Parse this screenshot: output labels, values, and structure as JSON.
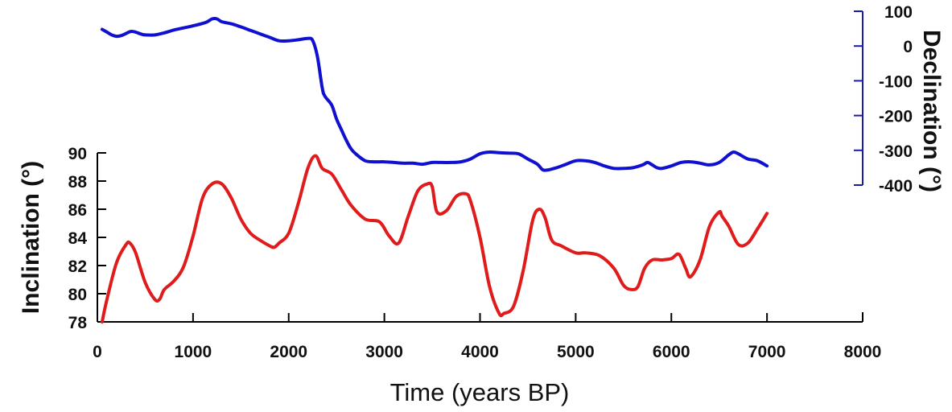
{
  "chart_data": {
    "type": "line",
    "x_axis": {
      "label": "Time (years BP)",
      "range": [
        0,
        8000
      ],
      "ticks": [
        "0",
        "1000",
        "2000",
        "3000",
        "4000",
        "5000",
        "6000",
        "7000",
        "8000"
      ]
    },
    "inclination_axis": {
      "label": "Inclination  (°)",
      "range": [
        78,
        90
      ],
      "ticks": [
        "78",
        "80",
        "82",
        "84",
        "86",
        "88",
        "90"
      ]
    },
    "declination_axis": {
      "label": "Declination  (°)",
      "range": [
        -400,
        100
      ],
      "ticks": [
        "100",
        "0",
        "-100",
        "-200",
        "-300",
        "-400"
      ]
    },
    "series": [
      {
        "key": "inclination",
        "color": "#e01b1b",
        "x": [
          50,
          100,
          200,
          300,
          340,
          400,
          500,
          600,
          650,
          700,
          800,
          900,
          1000,
          1100,
          1200,
          1300,
          1400,
          1500,
          1600,
          1700,
          1800,
          1850,
          1900,
          2000,
          2100,
          2200,
          2280,
          2350,
          2450,
          2550,
          2650,
          2800,
          2950,
          3050,
          3150,
          3250,
          3350,
          3450,
          3500,
          3550,
          3650,
          3750,
          3850,
          3900,
          4000,
          4100,
          4200,
          4250,
          4350,
          4450,
          4550,
          4620,
          4680,
          4750,
          4850,
          5000,
          5100,
          5250,
          5400,
          5500,
          5580,
          5650,
          5720,
          5800,
          5900,
          6000,
          6080,
          6150,
          6200,
          6300,
          6400,
          6500,
          6530,
          6600,
          6700,
          6800,
          6900,
          7000
        ],
        "values": [
          78.0,
          79.6,
          82.2,
          83.5,
          83.6,
          82.9,
          80.8,
          79.6,
          79.6,
          80.3,
          80.9,
          81.9,
          84.1,
          86.8,
          87.8,
          87.8,
          86.8,
          85.3,
          84.3,
          83.8,
          83.4,
          83.3,
          83.6,
          84.3,
          86.4,
          88.9,
          89.8,
          88.9,
          88.5,
          87.4,
          86.3,
          85.3,
          85.1,
          84.1,
          83.6,
          85.5,
          87.3,
          87.8,
          87.6,
          85.8,
          85.9,
          86.9,
          87.1,
          86.6,
          84.0,
          80.5,
          78.6,
          78.6,
          79.1,
          81.6,
          85.2,
          86.0,
          85.4,
          83.8,
          83.4,
          82.9,
          82.9,
          82.7,
          81.8,
          80.6,
          80.3,
          80.5,
          81.8,
          82.4,
          82.4,
          82.5,
          82.8,
          81.8,
          81.2,
          82.4,
          84.8,
          85.8,
          85.5,
          84.8,
          83.5,
          83.6,
          84.6,
          85.7
        ]
      },
      {
        "key": "declination",
        "color": "#1010d0",
        "x": [
          50,
          100,
          150,
          200,
          250,
          300,
          350,
          400,
          450,
          500,
          600,
          700,
          800,
          900,
          1000,
          1100,
          1150,
          1200,
          1250,
          1300,
          1400,
          1500,
          1600,
          1700,
          1800,
          1900,
          2000,
          2100,
          2200,
          2250,
          2300,
          2350,
          2380,
          2450,
          2500,
          2550,
          2600,
          2650,
          2700,
          2800,
          2900,
          3000,
          3100,
          3200,
          3300,
          3400,
          3500,
          3600,
          3700,
          3800,
          3900,
          4000,
          4100,
          4200,
          4300,
          4400,
          4500,
          4600,
          4650,
          4700,
          4800,
          4900,
          5000,
          5100,
          5200,
          5300,
          5400,
          5500,
          5600,
          5700,
          5750,
          5800,
          5850,
          5900,
          6000,
          6100,
          6200,
          6300,
          6400,
          6500,
          6600,
          6650,
          6700,
          6800,
          6900,
          7000
        ],
        "values": [
          48,
          40,
          32,
          28,
          30,
          36,
          42,
          40,
          35,
          32,
          32,
          38,
          46,
          52,
          58,
          65,
          70,
          78,
          78,
          70,
          64,
          55,
          45,
          35,
          25,
          15,
          15,
          18,
          22,
          16,
          -30,
          -120,
          -145,
          -170,
          -210,
          -240,
          -270,
          -295,
          -310,
          -330,
          -333,
          -333,
          -335,
          -337,
          -337,
          -340,
          -335,
          -335,
          -335,
          -333,
          -325,
          -310,
          -305,
          -307,
          -308,
          -310,
          -325,
          -340,
          -355,
          -357,
          -350,
          -340,
          -330,
          -330,
          -335,
          -345,
          -352,
          -352,
          -350,
          -342,
          -335,
          -342,
          -350,
          -352,
          -345,
          -335,
          -333,
          -337,
          -342,
          -335,
          -313,
          -305,
          -310,
          -325,
          -330,
          -345
        ]
      }
    ]
  }
}
